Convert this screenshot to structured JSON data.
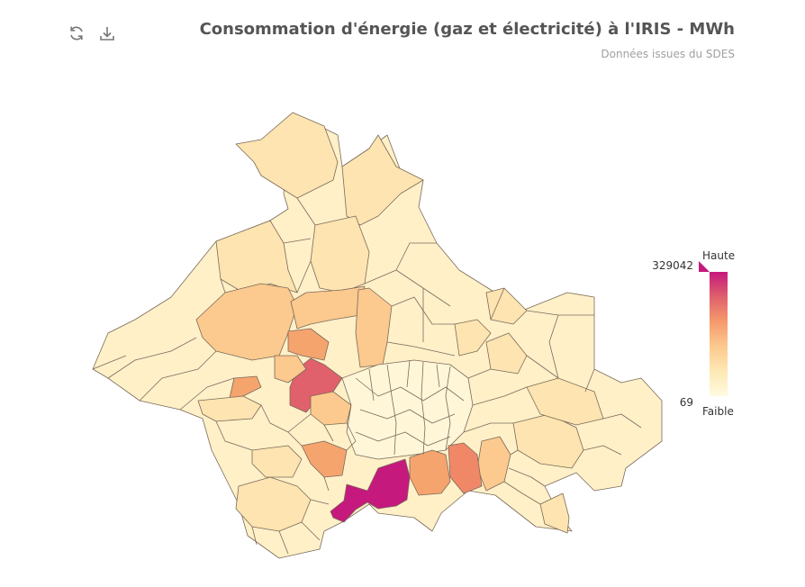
{
  "header": {
    "title": "Consommation d'énergie (gaz et électricité) à l'IRIS - MWh",
    "subtitle": "Données issues du SDES"
  },
  "toolbar": {
    "refresh_icon": "refresh-icon",
    "download_icon": "download-icon"
  },
  "legend": {
    "high_label": "Haute",
    "low_label": "Faible",
    "max_value": "329042",
    "min_value": "69",
    "colors": [
      "#fffbe0",
      "#fde8b4",
      "#fcc98e",
      "#f59a6c",
      "#e0606c",
      "#c5197d"
    ]
  },
  "map": {
    "stroke_color": "#7a6a5a",
    "highlight_color": "#c5197d"
  }
}
